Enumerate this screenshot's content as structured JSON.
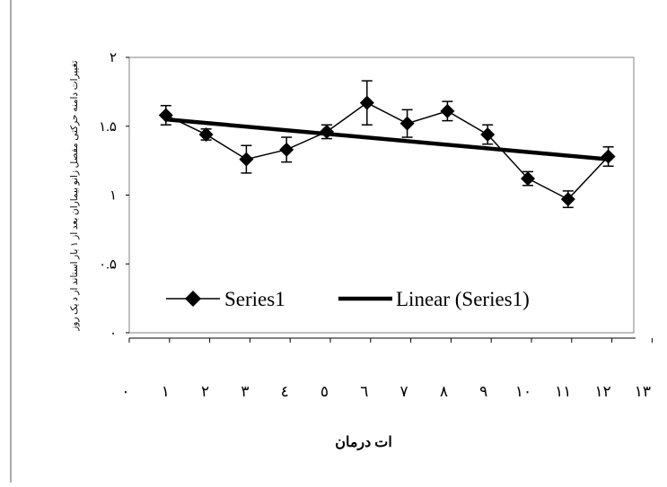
{
  "chart_data": {
    "type": "line",
    "title": "",
    "ylabel": "تغییرات دامنه حرکتی مفصل زانو بیماران بعد از ۱ بار استاند ار د یک روز",
    "xlabel": "ات درمان",
    "ylim": [
      0,
      2
    ],
    "y_ticks": [
      "۰",
      "۰.۵",
      "۱",
      "۱.۵",
      "۲"
    ],
    "x_ticks": [
      "۰",
      "۱",
      "۲",
      "۳",
      "٤",
      "٥",
      "٦",
      "٧",
      "٨",
      "٩",
      "۱۰",
      "۱۱",
      "۱۲",
      "۱۳"
    ],
    "x": [
      1,
      2,
      3,
      4,
      5,
      6,
      7,
      8,
      9,
      10,
      11,
      12
    ],
    "series": [
      {
        "name": "Series1",
        "values": [
          1.58,
          1.44,
          1.26,
          1.33,
          1.46,
          1.67,
          1.52,
          1.61,
          1.44,
          1.12,
          0.97,
          1.28
        ],
        "error": [
          0.07,
          0.04,
          0.1,
          0.09,
          0.05,
          0.16,
          0.1,
          0.07,
          0.07,
          0.05,
          0.06,
          0.07
        ],
        "marker": "diamond",
        "color": "#000000"
      },
      {
        "name": "Linear (Series1)",
        "type": "trendline",
        "x": [
          1,
          12
        ],
        "values": [
          1.55,
          1.26
        ],
        "color": "#000000"
      }
    ],
    "legend": {
      "position": "bottom",
      "entries": [
        "Series1",
        "Linear (Series1)"
      ]
    },
    "grid": false
  }
}
